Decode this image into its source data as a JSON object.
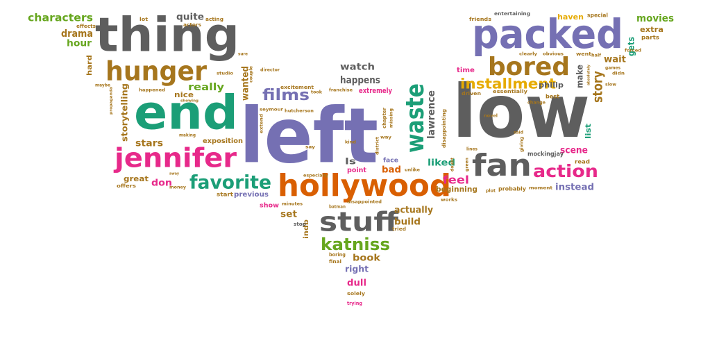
{
  "palette": {
    "grey": "#5e5e5e",
    "purple": "#7570b3",
    "teal": "#1b9e77",
    "pink": "#e7298a",
    "orange": "#d95f02",
    "olive": "#a6761d",
    "green": "#66a61e",
    "gold": "#e6ab02"
  },
  "words": [
    {
      "text": "left",
      "color": "purple"
    },
    {
      "text": "low",
      "color": "grey"
    },
    {
      "text": "end",
      "color": "teal"
    },
    {
      "text": "thing",
      "color": "grey"
    },
    {
      "text": "packed",
      "color": "purple"
    },
    {
      "text": "hollywood",
      "color": "orange"
    },
    {
      "text": "fan",
      "color": "grey"
    },
    {
      "text": "hunger",
      "color": "olive"
    },
    {
      "text": "bored",
      "color": "olive"
    },
    {
      "text": "jennifer",
      "color": "pink"
    },
    {
      "text": "waste",
      "color": "teal"
    },
    {
      "text": "stuff",
      "color": "grey"
    },
    {
      "text": "favorite",
      "color": "teal"
    },
    {
      "text": "action",
      "color": "pink"
    },
    {
      "text": "katniss",
      "color": "green"
    },
    {
      "text": "films",
      "color": "purple"
    },
    {
      "text": "installment",
      "color": "gold"
    },
    {
      "text": "story",
      "color": "olive"
    },
    {
      "text": "characters",
      "color": "green"
    },
    {
      "text": "movies",
      "color": "green"
    },
    {
      "text": "drama",
      "color": "olive"
    },
    {
      "text": "hour",
      "color": "green"
    },
    {
      "text": "quite",
      "color": "grey"
    },
    {
      "text": "really",
      "color": "green"
    },
    {
      "text": "watch",
      "color": "grey"
    },
    {
      "text": "happens",
      "color": "grey"
    },
    {
      "text": "extremely",
      "color": "pink"
    },
    {
      "text": "lawrence",
      "color": "grey"
    },
    {
      "text": "wanted",
      "color": "olive"
    },
    {
      "text": "stars",
      "color": "olive"
    },
    {
      "text": "feel",
      "color": "pink"
    },
    {
      "text": "liked",
      "color": "teal"
    },
    {
      "text": "bad",
      "color": "orange"
    },
    {
      "text": "scene",
      "color": "pink"
    },
    {
      "text": "instead",
      "color": "purple"
    },
    {
      "text": "book",
      "color": "olive"
    },
    {
      "text": "build",
      "color": "olive"
    },
    {
      "text": "actually",
      "color": "olive"
    },
    {
      "text": "set",
      "color": "olive"
    },
    {
      "text": "make",
      "color": "grey"
    },
    {
      "text": "wait",
      "color": "olive"
    },
    {
      "text": "gets",
      "color": "teal"
    },
    {
      "text": "philip",
      "color": "grey"
    },
    {
      "text": "mockingjay",
      "color": "grey"
    },
    {
      "text": "dull",
      "color": "pink"
    },
    {
      "text": "right",
      "color": "purple"
    },
    {
      "text": "storytelling",
      "color": "olive"
    },
    {
      "text": "great",
      "color": "olive"
    },
    {
      "text": "don",
      "color": "pink"
    },
    {
      "text": "exposition",
      "color": "olive"
    },
    {
      "text": "previous",
      "color": "purple"
    },
    {
      "text": "start",
      "color": "olive"
    },
    {
      "text": "beginning",
      "color": "olive"
    },
    {
      "text": "probably",
      "color": "olive"
    },
    {
      "text": "time",
      "color": "pink"
    },
    {
      "text": "haven",
      "color": "gold"
    },
    {
      "text": "special",
      "color": "olive"
    },
    {
      "text": "extra",
      "color": "olive"
    },
    {
      "text": "parts",
      "color": "olive"
    },
    {
      "text": "list",
      "color": "teal"
    },
    {
      "text": "best",
      "color": "olive"
    },
    {
      "text": "nice",
      "color": "olive"
    },
    {
      "text": "hard",
      "color": "olive"
    },
    {
      "text": "point",
      "color": "pink"
    },
    {
      "text": "face",
      "color": "purple"
    },
    {
      "text": "ls",
      "color": "grey"
    },
    {
      "text": "indb",
      "color": "olive"
    },
    {
      "text": "read",
      "color": "olive"
    },
    {
      "text": "entertaining",
      "color": "grey"
    },
    {
      "text": "friends",
      "color": "olive"
    },
    {
      "text": "show",
      "color": "pink"
    },
    {
      "text": "stop",
      "color": "grey"
    },
    {
      "text": "tried",
      "color": "olive"
    },
    {
      "text": "boring",
      "color": "olive"
    },
    {
      "text": "final",
      "color": "olive"
    },
    {
      "text": "solely",
      "color": "olive"
    },
    {
      "text": "trying",
      "color": "pink"
    },
    {
      "text": "chapter",
      "color": "olive"
    },
    {
      "text": "missing",
      "color": "olive"
    },
    {
      "text": "disappointing",
      "color": "olive"
    },
    {
      "text": "essentially",
      "color": "olive"
    },
    {
      "text": "driven",
      "color": "olive"
    },
    {
      "text": "clearly",
      "color": "olive"
    },
    {
      "text": "obvious",
      "color": "olive"
    },
    {
      "text": "went",
      "color": "olive"
    },
    {
      "text": "half",
      "color": "olive"
    },
    {
      "text": "forced",
      "color": "olive"
    },
    {
      "text": "games",
      "color": "olive"
    },
    {
      "text": "didn",
      "color": "olive"
    },
    {
      "text": "slow",
      "color": "olive"
    },
    {
      "text": "absolutely",
      "color": "olive"
    },
    {
      "text": "moment",
      "color": "olive"
    },
    {
      "text": "plot",
      "color": "olive"
    },
    {
      "text": "works",
      "color": "olive"
    },
    {
      "text": "change",
      "color": "olive"
    },
    {
      "text": "lot",
      "color": "olive"
    },
    {
      "text": "effects",
      "color": "olive"
    },
    {
      "text": "acting",
      "color": "olive"
    },
    {
      "text": "actors",
      "color": "olive"
    },
    {
      "text": "sure",
      "color": "olive"
    },
    {
      "text": "studio",
      "color": "olive"
    },
    {
      "text": "director",
      "color": "olive"
    },
    {
      "text": "couple",
      "color": "olive"
    },
    {
      "text": "maybe",
      "color": "olive"
    },
    {
      "text": "propaganda",
      "color": "olive"
    },
    {
      "text": "happened",
      "color": "olive"
    },
    {
      "text": "showing",
      "color": "olive"
    },
    {
      "text": "making",
      "color": "olive"
    },
    {
      "text": "excitement",
      "color": "olive"
    },
    {
      "text": "took",
      "color": "olive"
    },
    {
      "text": "franchise",
      "color": "olive"
    },
    {
      "text": "seymour",
      "color": "olive"
    },
    {
      "text": "hutcherson",
      "color": "olive"
    },
    {
      "text": "extend",
      "color": "olive"
    },
    {
      "text": "say",
      "color": "olive"
    },
    {
      "text": "kind",
      "color": "olive"
    },
    {
      "text": "district",
      "color": "olive"
    },
    {
      "text": "unlike",
      "color": "olive"
    },
    {
      "text": "especially",
      "color": "olive"
    },
    {
      "text": "away",
      "color": "olive"
    },
    {
      "text": "offers",
      "color": "olive"
    },
    {
      "text": "money",
      "color": "olive"
    },
    {
      "text": "minutes",
      "color": "olive"
    },
    {
      "text": "batman",
      "color": "olive"
    },
    {
      "text": "disappointed",
      "color": "olive"
    },
    {
      "text": "novel",
      "color": "olive"
    },
    {
      "text": "said",
      "color": "olive"
    },
    {
      "text": "lines",
      "color": "olive"
    },
    {
      "text": "doubt",
      "color": "olive"
    },
    {
      "text": "green",
      "color": "olive"
    },
    {
      "text": "giving",
      "color": "olive"
    },
    {
      "text": "way",
      "color": "olive"
    }
  ]
}
